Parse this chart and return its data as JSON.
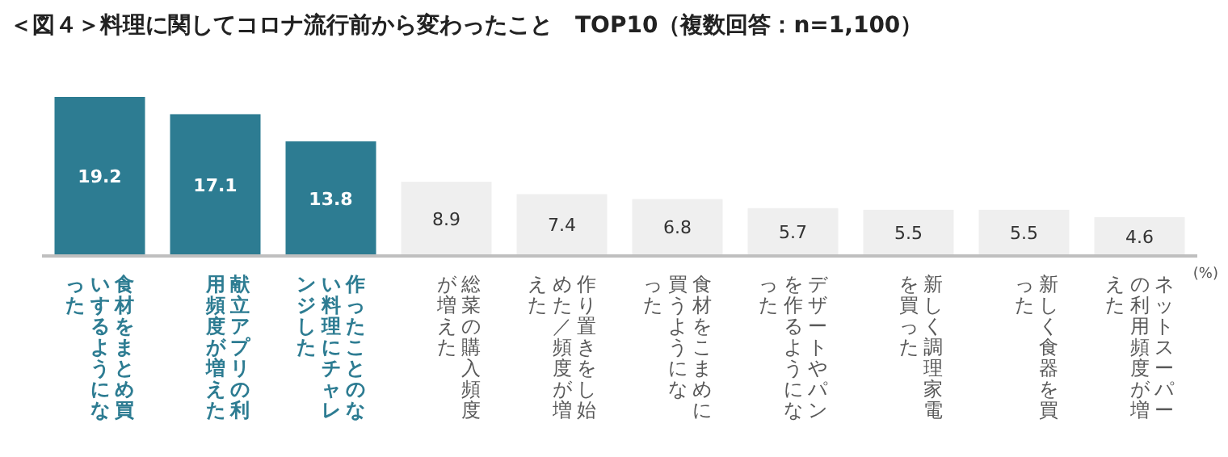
{
  "chart_data": {
    "type": "bar",
    "title": "＜図４＞料理に関してコロナ流行前から変わったこと　TOP10（複数回答：n=1,100）",
    "categories": [
      "食材をまとめ買いするようになった",
      "献立アプリの利用頻度が増えた",
      "作ったことのない料理にチャレンジした",
      "総菜の購入頻度が増えた",
      "作り置きをし始めた／頻度が増えた",
      "食材をこまめに買うようになった",
      "デザートやパンを作るようになった",
      "新しく調理家電を買った",
      "新しく食器を買った",
      "ネットスーパーの利用頻度が増えた"
    ],
    "values": [
      19.2,
      17.1,
      13.8,
      8.9,
      7.4,
      6.8,
      5.7,
      5.5,
      5.5,
      4.6
    ],
    "colors": [
      "#2d7c92",
      "#2d7c92",
      "#2d7c92",
      "#efefef",
      "#efefef",
      "#efefef",
      "#efefef",
      "#efefef",
      "#efefef",
      "#efefef"
    ],
    "data_labels": true,
    "relative": false,
    "annotations": [
      "(%)"
    ]
  }
}
